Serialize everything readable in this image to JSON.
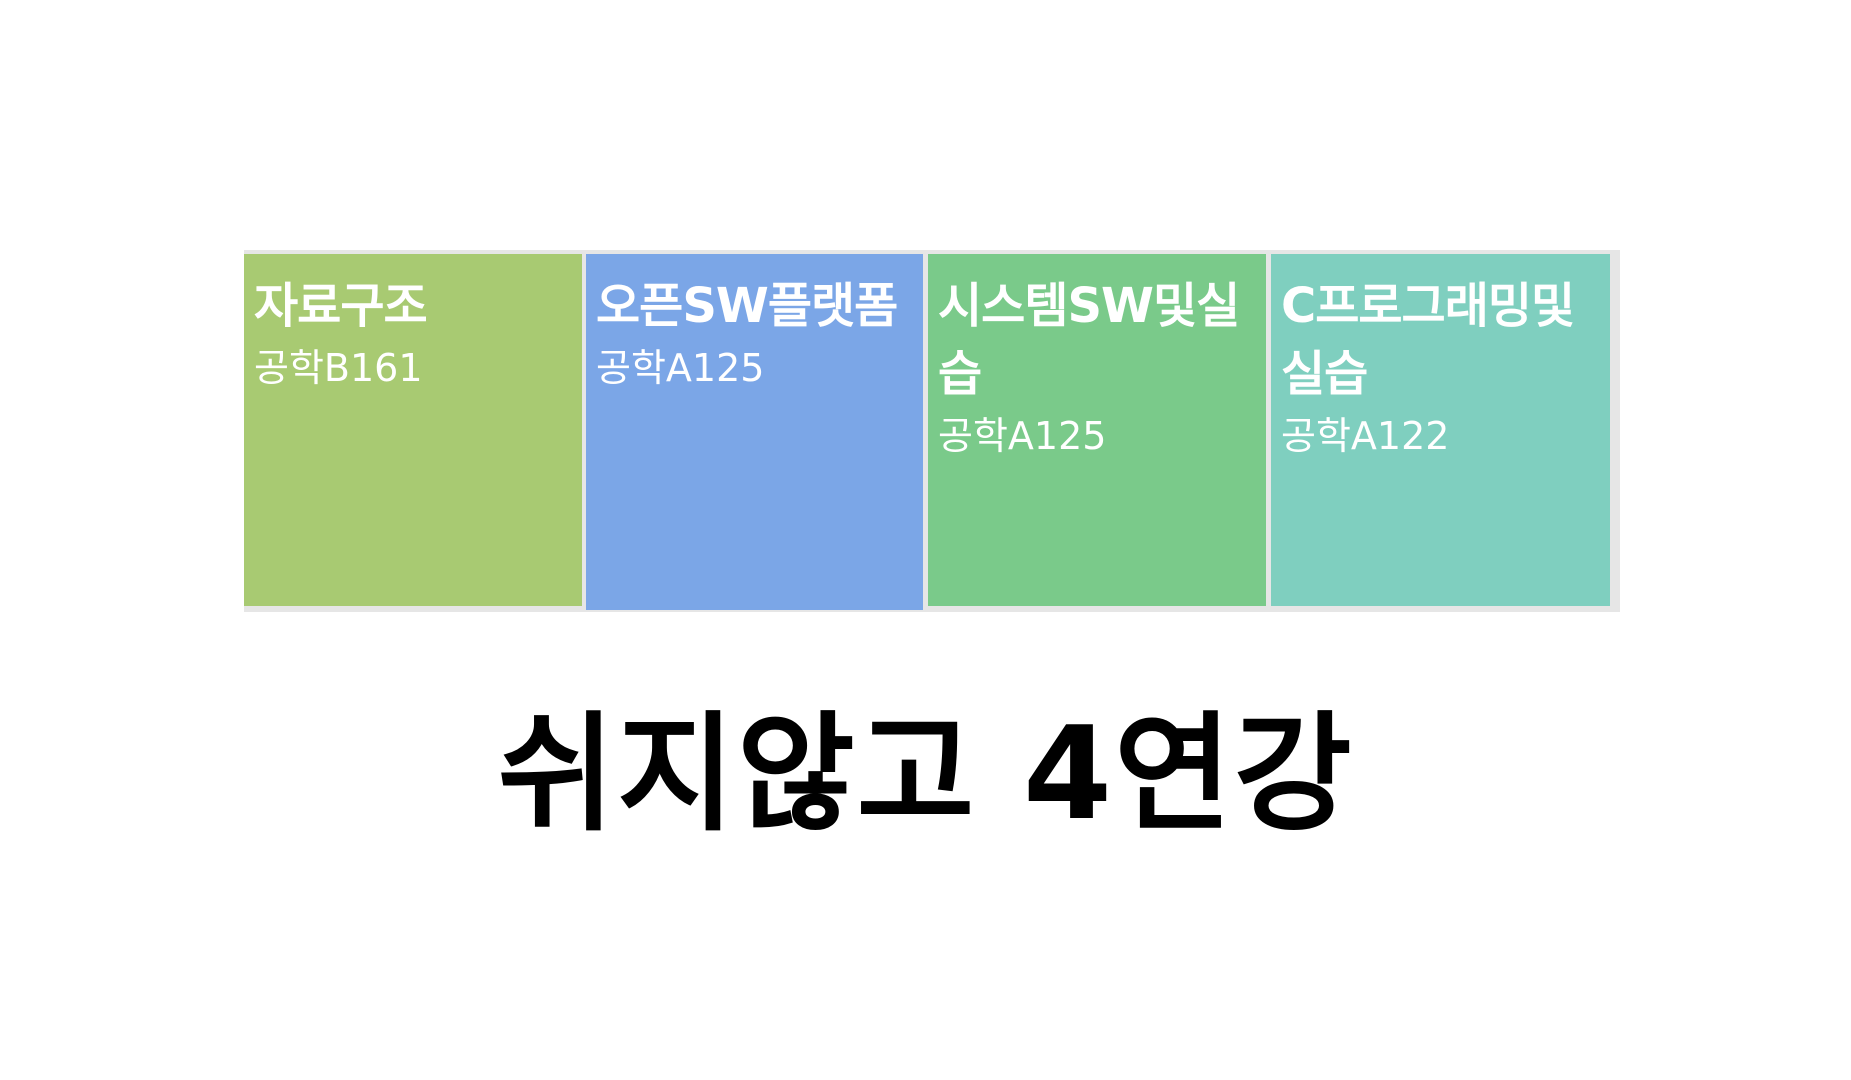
{
  "timetable": {
    "courses": [
      {
        "name": "자료구조",
        "room": "공학B161",
        "color": "#a8ca72"
      },
      {
        "name": "오픈SW플랫폼",
        "room": "공학A125",
        "color": "#7ba6e7"
      },
      {
        "name": "시스템SW및실습",
        "room": "공학A125",
        "color": "#7aca8a"
      },
      {
        "name": "C프로그래밍및실습",
        "room": "공학A122",
        "color": "#7fcfbf"
      }
    ]
  },
  "caption": {
    "text": "쉬지않고 4연강"
  }
}
